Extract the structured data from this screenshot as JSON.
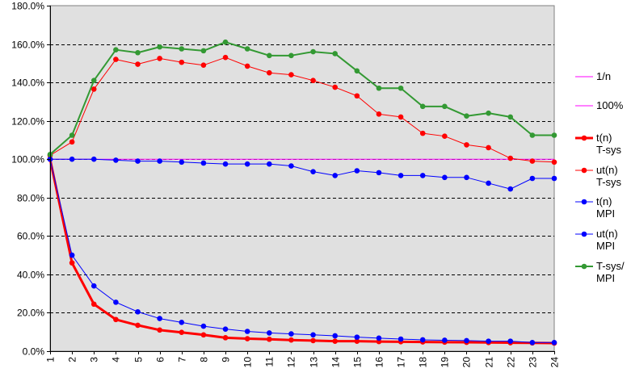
{
  "chart_data": {
    "type": "line",
    "title": "",
    "xlabel": "",
    "ylabel": "",
    "x": [
      1,
      2,
      3,
      4,
      5,
      6,
      7,
      8,
      9,
      10,
      11,
      12,
      13,
      14,
      15,
      16,
      17,
      18,
      19,
      20,
      21,
      22,
      23,
      24
    ],
    "ylim": [
      0,
      180
    ],
    "y_tick_labels": [
      "0.0%",
      "20.0%",
      "40.0%",
      "60.0%",
      "80.0%",
      "100.0%",
      "120.0%",
      "140.0%",
      "160.0%",
      "180.0%"
    ],
    "y_tick_values": [
      0,
      20,
      40,
      60,
      80,
      100,
      120,
      140,
      160,
      180
    ],
    "grid": "horizontal dashed",
    "plot_background": "#e0e0e0",
    "legend_position": "right",
    "series": [
      {
        "name": "1/n",
        "label_lines": [
          "1/n"
        ],
        "color": "#ff00ff",
        "width": 1,
        "markers": false,
        "show_line": false,
        "values": [
          100,
          50,
          33.3,
          25,
          20,
          16.7,
          14.3,
          12.5,
          11.1,
          10,
          9.1,
          8.3,
          7.7,
          7.1,
          6.7,
          6.3,
          5.9,
          5.6,
          5.3,
          5,
          4.8,
          4.5,
          4.3,
          4.2
        ]
      },
      {
        "name": "100%",
        "label_lines": [
          "100%"
        ],
        "color": "#ff00ff",
        "width": 1,
        "markers": false,
        "show_line": true,
        "values": [
          100,
          100,
          100,
          100,
          100,
          100,
          100,
          100,
          100,
          100,
          100,
          100,
          100,
          100,
          100,
          100,
          100,
          100,
          100,
          100,
          100,
          100,
          100,
          100
        ]
      },
      {
        "name": "t(n) T-sys",
        "label_lines": [
          "t(n)",
          "T-sys"
        ],
        "color": "#ff0000",
        "width": 3,
        "markers": true,
        "show_line": true,
        "values": [
          100,
          46,
          24.5,
          16.5,
          13.5,
          11,
          9.8,
          8.5,
          7,
          6.5,
          6.2,
          5.8,
          5.5,
          5.2,
          5.2,
          5,
          4.9,
          4.8,
          4.7,
          4.6,
          4.5,
          4.4,
          4.3,
          4.2
        ]
      },
      {
        "name": "ut(n) T-sys",
        "label_lines": [
          "ut(n)",
          "T-sys"
        ],
        "color": "#ff0000",
        "width": 1,
        "markers": true,
        "show_line": true,
        "values": [
          102,
          109,
          136.5,
          152,
          149.5,
          152.5,
          150.5,
          149,
          153,
          148.5,
          145,
          144,
          141,
          137.5,
          133,
          123.5,
          122,
          113.5,
          112,
          107.5,
          106,
          100.5,
          99,
          98.5
        ]
      },
      {
        "name": "t(n) MPI",
        "label_lines": [
          "t(n)",
          "MPI"
        ],
        "color": "#0000ff",
        "width": 1,
        "markers": true,
        "show_line": true,
        "values": [
          100,
          50,
          34,
          25.5,
          20.5,
          17,
          15,
          13,
          11.5,
          10.3,
          9.5,
          9,
          8.5,
          8,
          7.3,
          6.8,
          6.3,
          5.9,
          5.7,
          5.5,
          5.2,
          5.2,
          4.5,
          4.5
        ]
      },
      {
        "name": "ut(n) MPI",
        "label_lines": [
          "ut(n)",
          "MPI"
        ],
        "color": "#0000ff",
        "width": 1,
        "markers": true,
        "show_line": true,
        "values": [
          100,
          100,
          100,
          99.5,
          99,
          99,
          98.5,
          98,
          97.5,
          97.5,
          97.5,
          96.5,
          93.5,
          91.5,
          94,
          93,
          91.5,
          91.5,
          90.5,
          90.5,
          87.5,
          84.5,
          90,
          90
        ]
      },
      {
        "name": "T-sys/ MPI",
        "label_lines": [
          "T-sys/",
          "MPI"
        ],
        "color": "#339933",
        "width": 2,
        "markers": true,
        "show_line": true,
        "values": [
          102.5,
          112.5,
          141,
          157,
          155.5,
          158.5,
          157.5,
          156.5,
          161,
          157.5,
          154,
          154,
          156,
          155,
          146,
          137,
          137,
          127.5,
          127.5,
          122.5,
          124,
          122,
          112.5,
          112.5
        ]
      }
    ]
  }
}
